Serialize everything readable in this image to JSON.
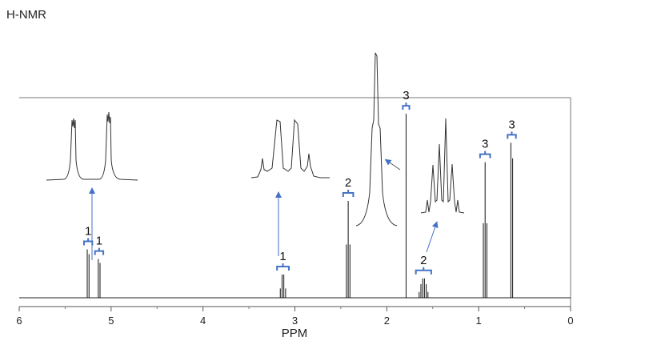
{
  "title": "H-NMR",
  "chart_data": {
    "type": "line",
    "subtype": "nmr-spectrum",
    "xlabel": "PPM",
    "xlim": [
      6,
      0
    ],
    "x_reversed": true,
    "x_ticks": [
      "6",
      "5",
      "4",
      "3",
      "2",
      "1",
      "0"
    ],
    "grid": false,
    "legend": "none",
    "line_color": "#000000",
    "annotation_color": "#4472c4",
    "peaks": [
      {
        "shift": 5.25,
        "multiplicity": "doublet",
        "integration": "1",
        "height": 0.25
      },
      {
        "shift": 5.13,
        "multiplicity": "doublet",
        "integration": "1",
        "height": 0.2
      },
      {
        "shift": 3.13,
        "multiplicity": "quartet",
        "integration": "1",
        "height": 0.12
      },
      {
        "shift": 2.42,
        "multiplicity": "triplet",
        "integration": "2",
        "height": 0.5
      },
      {
        "shift": 1.79,
        "multiplicity": "singlet",
        "integration": "3",
        "height": 0.95
      },
      {
        "shift": 1.6,
        "multiplicity": "sextet",
        "integration": "2",
        "height": 0.1
      },
      {
        "shift": 0.93,
        "multiplicity": "triplet",
        "integration": "3",
        "height": 0.7
      },
      {
        "shift": 0.64,
        "multiplicity": "doublet",
        "integration": "3",
        "height": 0.8
      }
    ],
    "annotations": [
      "1",
      "1",
      "1",
      "2",
      "3",
      "2",
      "3",
      "3"
    ]
  }
}
